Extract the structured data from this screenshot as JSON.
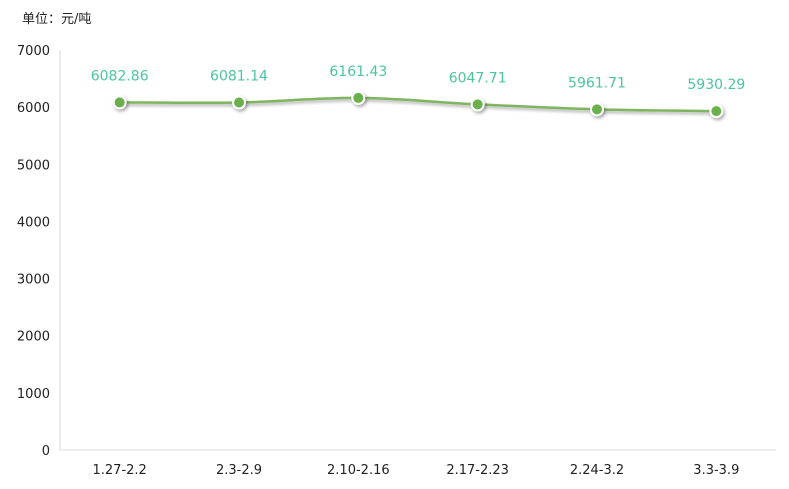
{
  "unit_label": "单位：元/吨",
  "colors": {
    "line": "#7fb55f",
    "marker_fill": "#6ab04c",
    "data_label": "#4bc4a0",
    "axis": "#d9d9d9"
  },
  "chart_data": {
    "type": "line",
    "title": "",
    "xlabel": "",
    "ylabel": "",
    "ylim": [
      0,
      7000
    ],
    "yticks": [
      0,
      1000,
      2000,
      3000,
      4000,
      5000,
      6000,
      7000
    ],
    "grid": false,
    "categories": [
      "1.27-2.2",
      "2.3-2.9",
      "2.10-2.16",
      "2.17-2.23",
      "2.24-3.2",
      "3.3-3.9"
    ],
    "series": [
      {
        "values": [
          6082.86,
          6081.14,
          6161.43,
          6047.71,
          5961.71,
          5930.29
        ],
        "labels": [
          "6082.86",
          "6081.14",
          "6161.43",
          "6047.71",
          "5961.71",
          "5930.29"
        ]
      }
    ]
  }
}
